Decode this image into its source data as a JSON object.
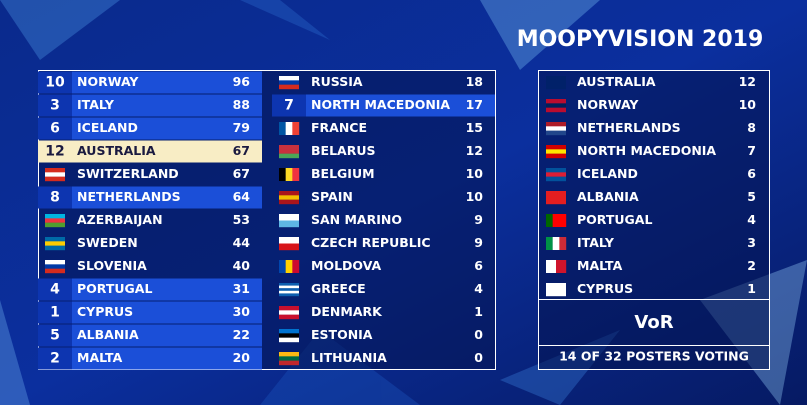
{
  "title": "MOOPYVISION 2019",
  "scoreboard": {
    "columns": [
      {
        "rows": [
          {
            "points": 10,
            "country": "NORWAY",
            "score": 96
          },
          {
            "points": 3,
            "country": "ITALY",
            "score": 88
          },
          {
            "points": 6,
            "country": "ICELAND",
            "score": 79
          },
          {
            "points": 12,
            "country": "AUSTRALIA",
            "score": 67
          },
          {
            "points": null,
            "country": "SWITZERLAND",
            "score": 67
          },
          {
            "points": 8,
            "country": "NETHERLANDS",
            "score": 64
          },
          {
            "points": null,
            "country": "AZERBAIJAN",
            "score": 53
          },
          {
            "points": null,
            "country": "SWEDEN",
            "score": 44
          },
          {
            "points": null,
            "country": "SLOVENIA",
            "score": 40
          },
          {
            "points": 4,
            "country": "PORTUGAL",
            "score": 31
          },
          {
            "points": 1,
            "country": "CYPRUS",
            "score": 30
          },
          {
            "points": 5,
            "country": "ALBANIA",
            "score": 22
          },
          {
            "points": 2,
            "country": "MALTA",
            "score": 20
          }
        ]
      },
      {
        "rows": [
          {
            "points": null,
            "country": "RUSSIA",
            "score": 18
          },
          {
            "points": 7,
            "country": "NORTH MACEDONIA",
            "score": 17
          },
          {
            "points": null,
            "country": "FRANCE",
            "score": 15
          },
          {
            "points": null,
            "country": "BELARUS",
            "score": 12
          },
          {
            "points": null,
            "country": "BELGIUM",
            "score": 10
          },
          {
            "points": null,
            "country": "SPAIN",
            "score": 10
          },
          {
            "points": null,
            "country": "SAN MARINO",
            "score": 9
          },
          {
            "points": null,
            "country": "CZECH REPUBLIC",
            "score": 9
          },
          {
            "points": null,
            "country": "MOLDOVA",
            "score": 6
          },
          {
            "points": null,
            "country": "GREECE",
            "score": 4
          },
          {
            "points": null,
            "country": "DENMARK",
            "score": 1
          },
          {
            "points": null,
            "country": "ESTONIA",
            "score": 0
          },
          {
            "points": null,
            "country": "LITHUANIA",
            "score": 0
          }
        ]
      }
    ]
  },
  "voter_panel": {
    "rows": [
      {
        "country": "AUSTRALIA",
        "points": 12
      },
      {
        "country": "NORWAY",
        "points": 10
      },
      {
        "country": "NETHERLANDS",
        "points": 8
      },
      {
        "country": "NORTH MACEDONIA",
        "points": 7
      },
      {
        "country": "ICELAND",
        "points": 6
      },
      {
        "country": "ALBANIA",
        "points": 5
      },
      {
        "country": "PORTUGAL",
        "points": 4
      },
      {
        "country": "ITALY",
        "points": 3
      },
      {
        "country": "MALTA",
        "points": 2
      },
      {
        "country": "CYPRUS",
        "points": 1
      }
    ],
    "voter": "VoR",
    "status": "14 OF 32 POSTERS VOTING"
  }
}
